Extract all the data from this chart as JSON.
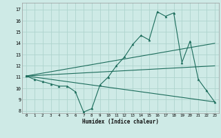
{
  "xlabel": "Humidex (Indice chaleur)",
  "ylabel": "",
  "background_color": "#ceeae6",
  "grid_color": "#aed4ce",
  "line_color": "#1a6b5a",
  "xlim": [
    -0.5,
    23.5
  ],
  "ylim": [
    7.8,
    17.6
  ],
  "yticks": [
    8,
    9,
    10,
    11,
    12,
    13,
    14,
    15,
    16,
    17
  ],
  "xticks": [
    0,
    1,
    2,
    3,
    4,
    5,
    6,
    7,
    8,
    9,
    10,
    11,
    12,
    13,
    14,
    15,
    16,
    17,
    18,
    19,
    20,
    21,
    22,
    23
  ],
  "line1_x": [
    0,
    1,
    2,
    3,
    4,
    5,
    6,
    7,
    8,
    9,
    10,
    11,
    12,
    13,
    14,
    15,
    16,
    17,
    18,
    19,
    20,
    21,
    22,
    23
  ],
  "line1_y": [
    11.1,
    10.8,
    10.6,
    10.4,
    10.2,
    10.2,
    9.7,
    7.9,
    8.2,
    10.3,
    11.0,
    12.0,
    12.8,
    13.9,
    14.7,
    14.3,
    16.8,
    16.4,
    16.7,
    12.3,
    14.2,
    10.8,
    9.8,
    8.8
  ],
  "line2_x": [
    0,
    23
  ],
  "line2_y": [
    11.1,
    8.8
  ],
  "line3_x": [
    0,
    23
  ],
  "line3_y": [
    11.1,
    12.0
  ],
  "line4_x": [
    0,
    23
  ],
  "line4_y": [
    11.1,
    14.0
  ]
}
